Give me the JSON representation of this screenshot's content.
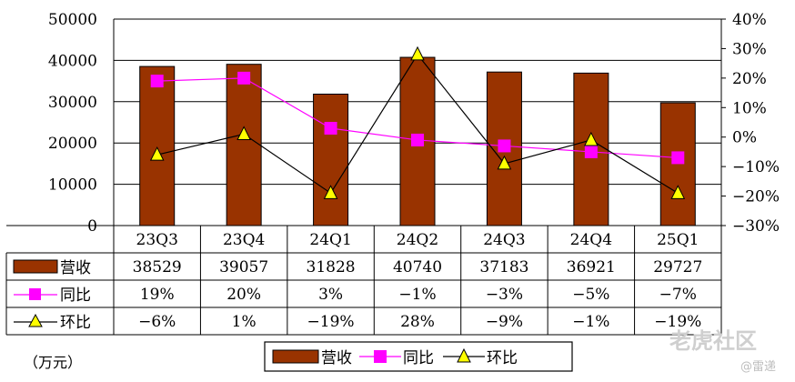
{
  "chart_data": {
    "type": "bar+line",
    "categories": [
      "23Q3",
      "23Q4",
      "24Q1",
      "24Q2",
      "24Q3",
      "24Q4",
      "25Q1"
    ],
    "series": [
      {
        "name": "营收",
        "type": "bar",
        "axis": "left",
        "color": "#993300",
        "values": [
          38529,
          39057,
          31828,
          40740,
          37183,
          36921,
          29727
        ]
      },
      {
        "name": "同比",
        "type": "line",
        "axis": "right",
        "color": "#ff00ff",
        "marker": "square",
        "values": [
          19,
          20,
          3,
          -1,
          -3,
          -5,
          -7
        ]
      },
      {
        "name": "环比",
        "type": "line",
        "axis": "right",
        "color": "#000000",
        "marker": "triangle",
        "marker_color": "#ffff00",
        "values": [
          -6,
          1,
          -19,
          28,
          -9,
          -1,
          -19
        ]
      }
    ],
    "table_values": {
      "营收": [
        "38529",
        "39057",
        "31828",
        "40740",
        "37183",
        "36921",
        "29727"
      ],
      "同比": [
        "19%",
        "20%",
        "3%",
        "−1%",
        "−3%",
        "−5%",
        "−7%"
      ],
      "环比": [
        "−6%",
        "1%",
        "−19%",
        "28%",
        "−9%",
        "−1%",
        "−19%"
      ]
    },
    "y_left": {
      "min": 0,
      "max": 50000,
      "ticks": [
        "0",
        "10000",
        "20000",
        "30000",
        "40000",
        "50000"
      ]
    },
    "y_right": {
      "min": -30,
      "max": 40,
      "ticks": [
        "−30%",
        "−20%",
        "−10%",
        "0%",
        "10%",
        "20%",
        "30%",
        "40%"
      ]
    },
    "unit": "（万元）",
    "legend": [
      "营收",
      "同比",
      "环比"
    ],
    "grid": true
  },
  "watermark": {
    "brand": "老虎社区",
    "user": "@雷递"
  }
}
